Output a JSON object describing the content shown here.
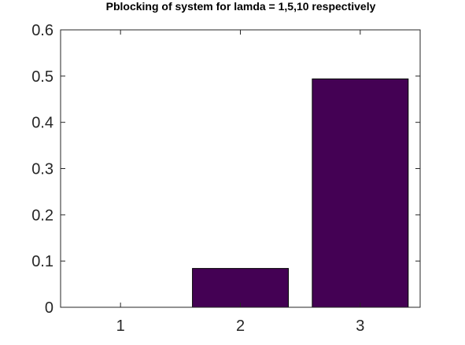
{
  "chart_data": {
    "type": "bar",
    "title": "Pblocking of system for lamda = 1,5,10 respectively",
    "xlabel": "",
    "ylabel": "",
    "categories": [
      "1",
      "2",
      "3"
    ],
    "values": [
      0.0,
      0.084,
      0.494
    ],
    "ylim": [
      0,
      0.6
    ],
    "yticks": [
      0,
      0.1,
      0.2,
      0.3,
      0.4,
      0.5,
      0.6
    ],
    "ytick_labels": [
      "0",
      "0.1",
      "0.2",
      "0.3",
      "0.4",
      "0.5",
      "0.6"
    ],
    "grid": false,
    "legend": "none",
    "bar_color": "#440154"
  }
}
